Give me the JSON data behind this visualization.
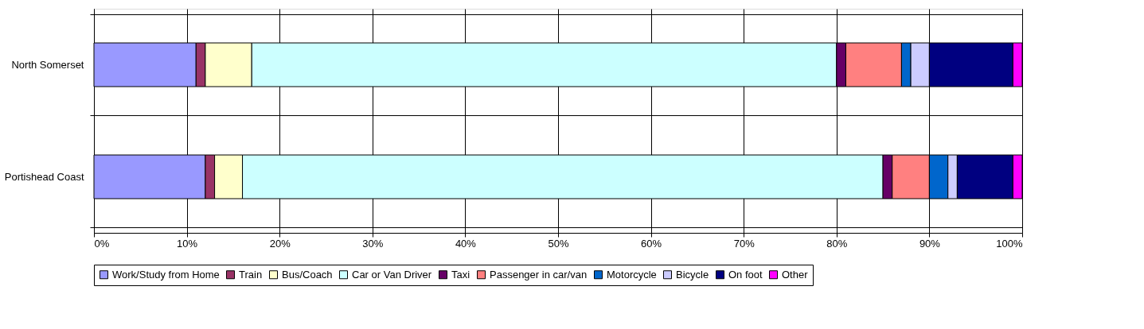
{
  "chart_data": {
    "type": "bar",
    "orientation": "horizontal",
    "stacked": true,
    "categories": [
      "North Somerset",
      "Portishead Coast"
    ],
    "series": [
      {
        "name": "Work/Study from Home",
        "color": "#9999ff",
        "values": [
          11,
          12
        ]
      },
      {
        "name": "Train",
        "color": "#993366",
        "values": [
          1,
          1
        ]
      },
      {
        "name": "Bus/Coach",
        "color": "#ffffcc",
        "values": [
          5,
          3
        ]
      },
      {
        "name": "Car or Van Driver",
        "color": "#ccffff",
        "values": [
          63,
          69
        ]
      },
      {
        "name": "Taxi",
        "color": "#660066",
        "values": [
          1,
          1
        ]
      },
      {
        "name": "Passenger in car/van",
        "color": "#ff8080",
        "values": [
          6,
          4
        ]
      },
      {
        "name": "Motorcycle",
        "color": "#0066cc",
        "values": [
          1,
          2
        ]
      },
      {
        "name": "Bicycle",
        "color": "#ccccff",
        "values": [
          2,
          1
        ]
      },
      {
        "name": "On foot",
        "color": "#000080",
        "values": [
          9,
          6
        ]
      },
      {
        "name": "Other",
        "color": "#ff00ff",
        "values": [
          1,
          1
        ]
      }
    ],
    "xlim": [
      0,
      100
    ],
    "xticks": [
      {
        "value": 0,
        "label": "0%"
      },
      {
        "value": 10,
        "label": "10%"
      },
      {
        "value": 20,
        "label": "20%"
      },
      {
        "value": 30,
        "label": "30%"
      },
      {
        "value": 40,
        "label": "40%"
      },
      {
        "value": 50,
        "label": "50%"
      },
      {
        "value": 60,
        "label": "60%"
      },
      {
        "value": 70,
        "label": "70%"
      },
      {
        "value": 80,
        "label": "80%"
      },
      {
        "value": 90,
        "label": "90%"
      },
      {
        "value": 100,
        "label": "100%"
      }
    ],
    "grid": true,
    "legend": "bottom"
  }
}
